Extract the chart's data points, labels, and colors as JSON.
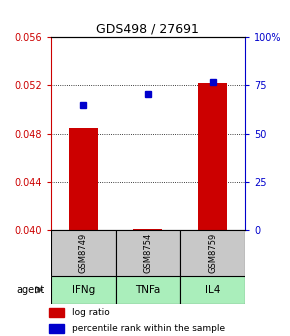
{
  "title": "GDS498 / 27691",
  "samples": [
    "GSM8749",
    "GSM8754",
    "GSM8759"
  ],
  "agents": [
    "IFNg",
    "TNFa",
    "IL4"
  ],
  "log_ratio": [
    0.04847,
    0.04012,
    0.05215
  ],
  "log_ratio_baseline": 0.04,
  "percentile_rank": [
    65.0,
    70.5,
    76.5
  ],
  "ylim_left": [
    0.04,
    0.056
  ],
  "ylim_right": [
    0,
    100
  ],
  "yticks_left": [
    0.04,
    0.044,
    0.048,
    0.052,
    0.056
  ],
  "yticks_right": [
    0,
    25,
    50,
    75,
    100
  ],
  "ytick_labels_right": [
    "0",
    "25",
    "50",
    "75",
    "100%"
  ],
  "bar_color": "#cc0000",
  "square_color": "#0000cc",
  "left_axis_color": "#cc0000",
  "right_axis_color": "#0000cc",
  "gray_box_color": "#c8c8c8",
  "green_box_color": "#aaeebb",
  "agent_label": "agent",
  "legend_log": "log ratio",
  "legend_pct": "percentile rank within the sample"
}
